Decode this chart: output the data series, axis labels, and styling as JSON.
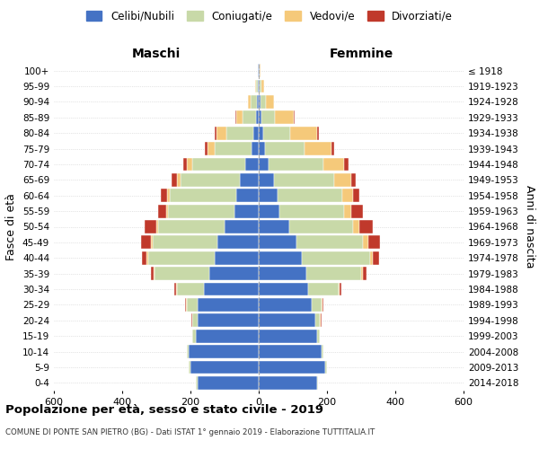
{
  "age_groups": [
    "0-4",
    "5-9",
    "10-14",
    "15-19",
    "20-24",
    "25-29",
    "30-34",
    "35-39",
    "40-44",
    "45-49",
    "50-54",
    "55-59",
    "60-64",
    "65-69",
    "70-74",
    "75-79",
    "80-84",
    "85-89",
    "90-94",
    "95-99",
    "100+"
  ],
  "birth_years": [
    "2014-2018",
    "2009-2013",
    "2004-2008",
    "1999-2003",
    "1994-1998",
    "1989-1993",
    "1984-1988",
    "1979-1983",
    "1974-1978",
    "1969-1973",
    "1964-1968",
    "1959-1963",
    "1954-1958",
    "1949-1953",
    "1944-1948",
    "1939-1943",
    "1934-1938",
    "1929-1933",
    "1924-1928",
    "1919-1923",
    "≤ 1918"
  ],
  "maschi": {
    "celibi": [
      180,
      200,
      205,
      185,
      180,
      180,
      160,
      145,
      130,
      120,
      100,
      70,
      65,
      55,
      40,
      20,
      15,
      8,
      5,
      3,
      2
    ],
    "coniugati": [
      5,
      5,
      5,
      10,
      15,
      30,
      80,
      160,
      195,
      190,
      195,
      195,
      195,
      175,
      155,
      110,
      80,
      40,
      18,
      5,
      1
    ],
    "vedovi": [
      0,
      0,
      0,
      0,
      1,
      2,
      2,
      3,
      3,
      5,
      5,
      5,
      8,
      10,
      15,
      20,
      30,
      18,
      8,
      2,
      0
    ],
    "divorziati": [
      0,
      0,
      0,
      0,
      2,
      3,
      5,
      8,
      15,
      30,
      35,
      25,
      18,
      15,
      10,
      8,
      4,
      2,
      1,
      0,
      0
    ]
  },
  "femmine": {
    "nubili": [
      170,
      195,
      185,
      170,
      165,
      155,
      145,
      140,
      125,
      110,
      90,
      60,
      55,
      45,
      30,
      18,
      12,
      8,
      5,
      3,
      2
    ],
    "coniugate": [
      3,
      5,
      5,
      10,
      15,
      30,
      90,
      160,
      200,
      195,
      185,
      190,
      190,
      175,
      160,
      115,
      80,
      40,
      15,
      5,
      1
    ],
    "vedove": [
      0,
      0,
      0,
      0,
      1,
      2,
      3,
      5,
      8,
      15,
      20,
      20,
      30,
      50,
      60,
      80,
      80,
      55,
      25,
      8,
      1
    ],
    "divorziate": [
      0,
      0,
      0,
      0,
      2,
      3,
      5,
      10,
      20,
      35,
      40,
      35,
      20,
      15,
      12,
      8,
      4,
      2,
      1,
      0,
      0
    ]
  },
  "colors": {
    "celibi": "#4472C4",
    "coniugati": "#c8d9a8",
    "vedovi": "#f5c97a",
    "divorziati": "#c0392b"
  },
  "xlim": 600,
  "title": "Popolazione per età, sesso e stato civile - 2019",
  "subtitle": "COMUNE DI PONTE SAN PIETRO (BG) - Dati ISTAT 1° gennaio 2019 - Elaborazione TUTTITALIA.IT",
  "ylabel_left": "Fasce di età",
  "ylabel_right": "Anni di nascita",
  "xlabel_maschi": "Maschi",
  "xlabel_femmine": "Femmine",
  "legend_labels": [
    "Celibi/Nubili",
    "Coniugati/e",
    "Vedovi/e",
    "Divorziati/e"
  ],
  "bg_color": "#ffffff",
  "grid_color": "#cccccc"
}
